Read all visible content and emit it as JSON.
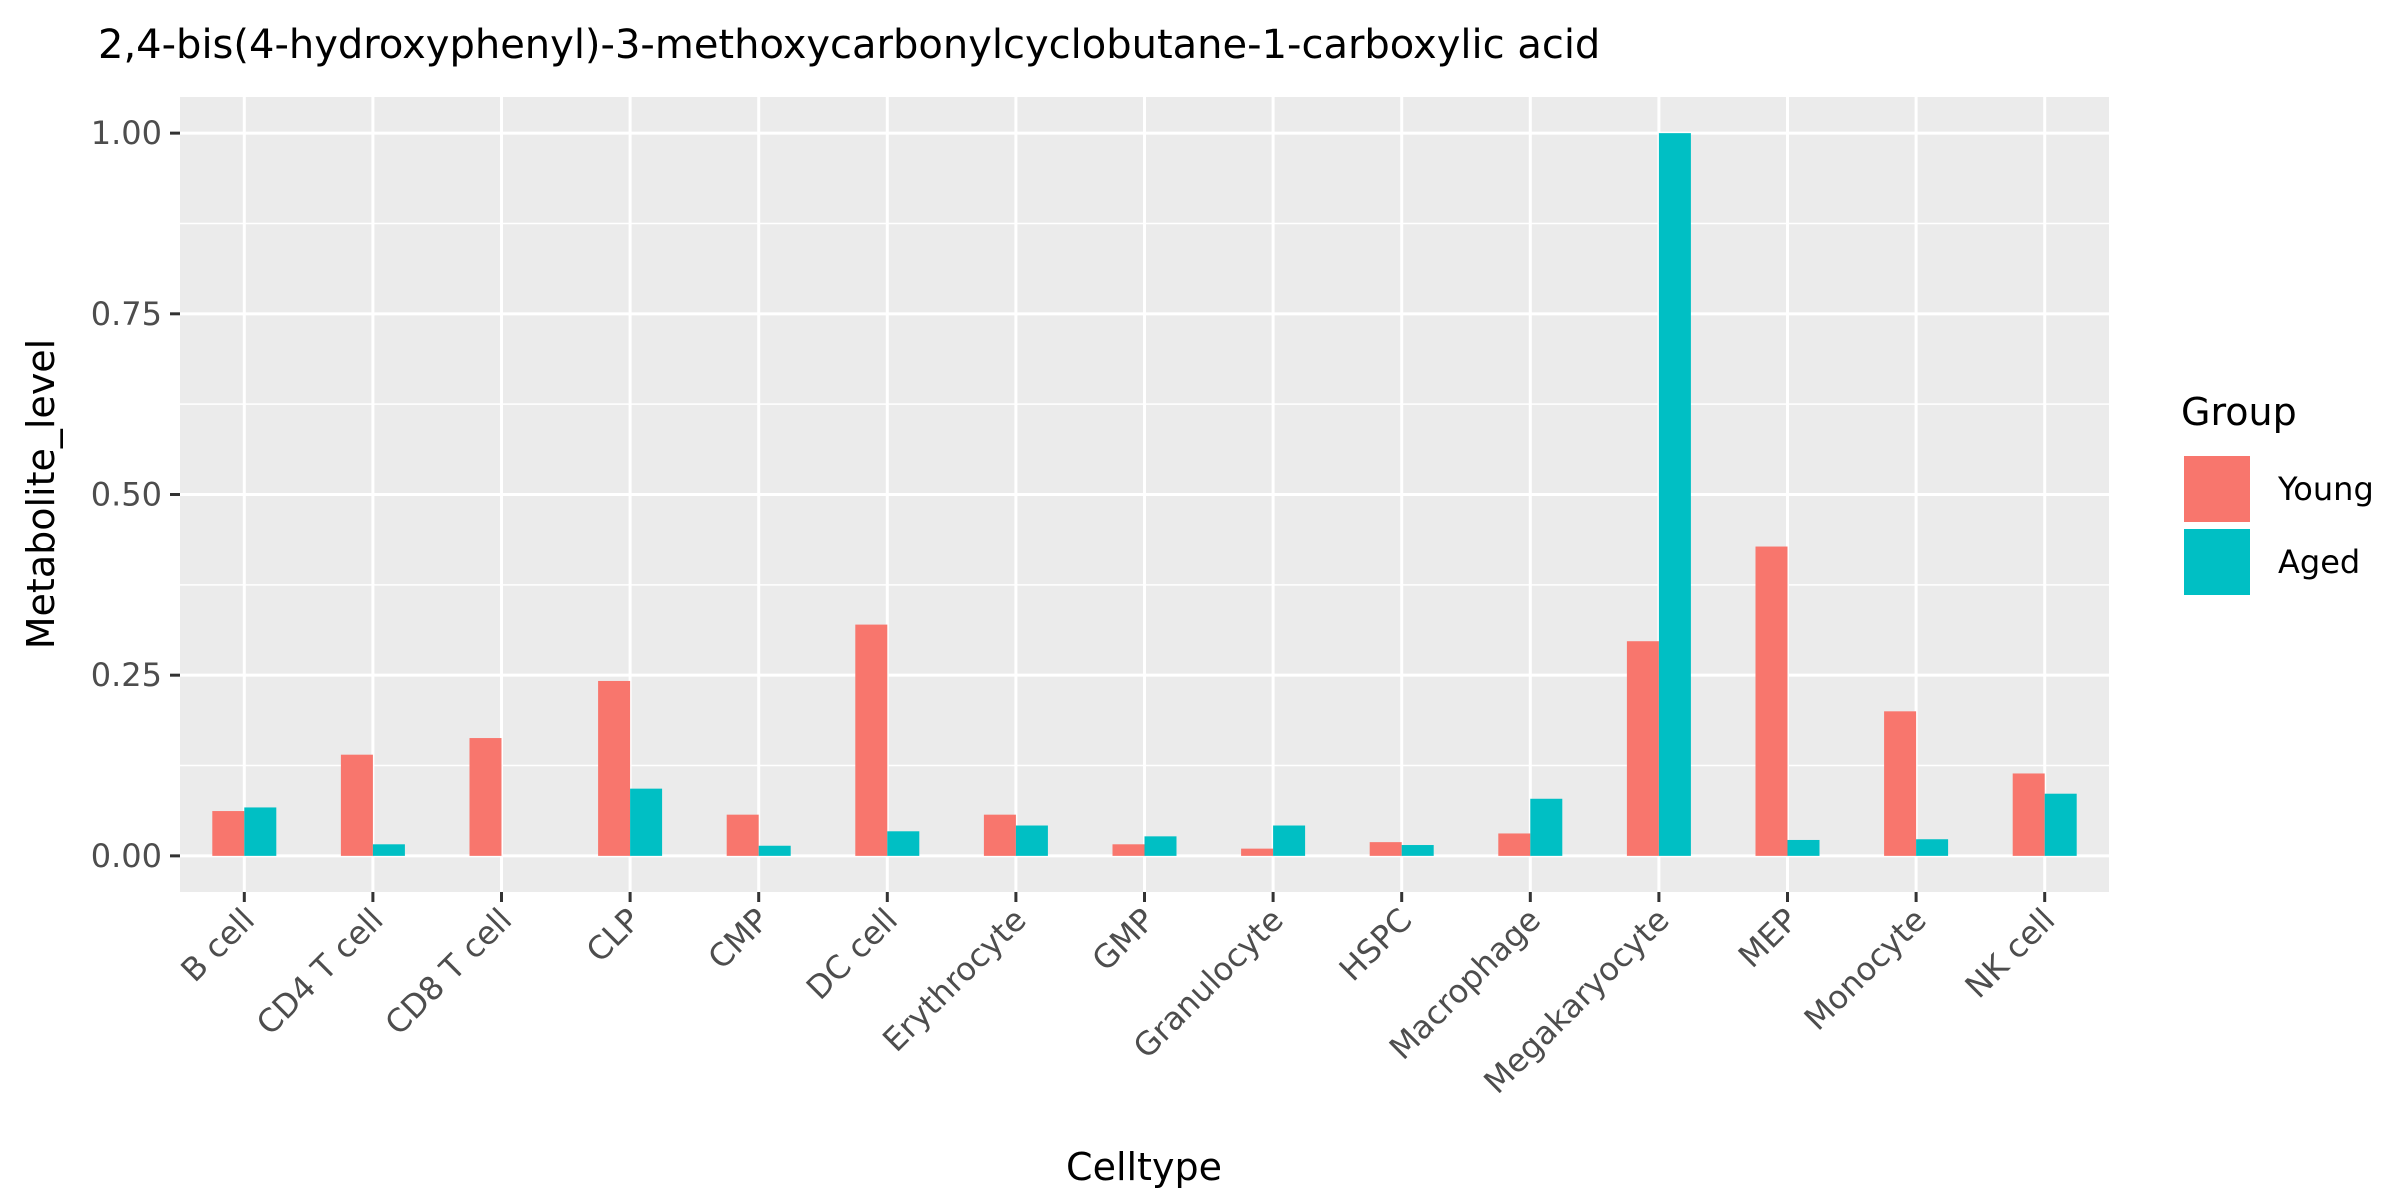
{
  "chart_data": {
    "type": "bar",
    "title": "2,4-bis(4-hydroxyphenyl)-3-methoxycarbonylcyclobutane-1-carboxylic acid",
    "xlabel": "Celltype",
    "ylabel": "Metabolite_level",
    "categories": [
      "B cell",
      "CD4 T cell",
      "CD8 T cell",
      "CLP",
      "CMP",
      "DC cell",
      "Erythrocyte",
      "GMP",
      "Granulocyte",
      "HSPC",
      "Macrophage",
      "Megakaryocyte",
      "MEP",
      "Monocyte",
      "NK cell"
    ],
    "series": [
      {
        "name": "Young",
        "color": "#F8766D",
        "values": [
          0.062,
          0.14,
          0.163,
          0.242,
          0.057,
          0.32,
          0.057,
          0.016,
          0.01,
          0.019,
          0.031,
          0.297,
          0.428,
          0.2,
          0.114
        ]
      },
      {
        "name": "Aged",
        "color": "#00BFC4",
        "values": [
          0.067,
          0.016,
          null,
          0.093,
          0.014,
          0.034,
          0.042,
          0.027,
          0.042,
          0.015,
          0.079,
          1.0,
          0.022,
          0.023,
          0.086
        ]
      }
    ],
    "ylim": [
      -0.05,
      1.05
    ],
    "yticks": [
      0.0,
      0.25,
      0.5,
      0.75,
      1.0
    ],
    "ytick_labels": [
      "0.00",
      "0.25",
      "0.50",
      "0.75",
      "1.00"
    ],
    "legend": {
      "title": "Group",
      "position": "right"
    },
    "panel_background": "#EBEBEB",
    "grid": true
  }
}
